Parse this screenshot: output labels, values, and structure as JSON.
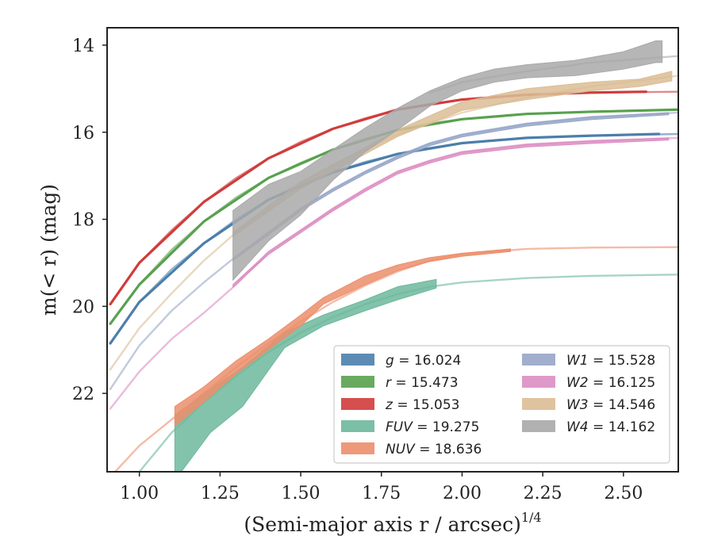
{
  "chart_data": {
    "type": "line",
    "xlabel": "(Semi-major axis r / arcsec)",
    "xlabel_superscript": "1/4",
    "ylabel": "m(< r) (mag)",
    "xlim": [
      0.9,
      2.67
    ],
    "ylim": [
      23.8,
      13.6
    ],
    "y_inverted": true,
    "xticks": [
      "1.00",
      "1.25",
      "1.50",
      "1.75",
      "2.00",
      "2.25",
      "2.50"
    ],
    "xtick_values": [
      1.0,
      1.25,
      1.5,
      1.75,
      2.0,
      2.25,
      2.5
    ],
    "yticks": [
      "14",
      "16",
      "18",
      "20",
      "22"
    ],
    "ytick_values": [
      14,
      16,
      18,
      20,
      22
    ],
    "legend_position": "lower-right",
    "legend": [
      {
        "band": "g",
        "value": "16.024",
        "color": "#4c7eab"
      },
      {
        "band": "r",
        "value": "15.473",
        "color": "#59a14f"
      },
      {
        "band": "z",
        "value": "15.053",
        "color": "#d03c3c"
      },
      {
        "band": "FUV",
        "value": "19.275",
        "color": "#6db89c"
      },
      {
        "band": "NUV",
        "value": "18.636",
        "color": "#ec8e6b"
      },
      {
        "band": "W1",
        "value": "15.528",
        "color": "#97a6c8"
      },
      {
        "band": "W2",
        "value": "16.125",
        "color": "#dc8ec3"
      },
      {
        "band": "W3",
        "value": "14.546",
        "color": "#dbbd95"
      },
      {
        "band": "W4",
        "value": "14.162",
        "color": "#a9a9a9"
      }
    ],
    "series": [
      {
        "band": "g",
        "color": "#4c7eab",
        "model": [
          [
            0.91,
            20.85
          ],
          [
            1.0,
            19.9
          ],
          [
            1.1,
            19.15
          ],
          [
            1.2,
            18.55
          ],
          [
            1.3,
            18.0
          ],
          [
            1.4,
            17.55
          ],
          [
            1.5,
            17.2
          ],
          [
            1.6,
            16.92
          ],
          [
            1.7,
            16.68
          ],
          [
            1.8,
            16.5
          ],
          [
            1.9,
            16.36
          ],
          [
            2.0,
            16.25
          ],
          [
            2.2,
            16.13
          ],
          [
            2.4,
            16.08
          ],
          [
            2.67,
            16.04
          ]
        ],
        "band_data": [
          [
            0.91,
            20.85,
            20.85
          ],
          [
            1.0,
            19.9,
            19.9
          ],
          [
            1.2,
            18.55,
            18.55
          ],
          [
            1.4,
            17.55,
            17.55
          ],
          [
            1.6,
            16.92,
            16.92
          ],
          [
            1.8,
            16.5,
            16.5
          ],
          [
            2.0,
            16.25,
            16.25
          ],
          [
            2.2,
            16.13,
            16.13
          ],
          [
            2.4,
            16.08,
            16.08
          ],
          [
            2.61,
            16.04,
            16.04
          ]
        ]
      },
      {
        "band": "r",
        "color": "#59a14f",
        "model": [
          [
            0.91,
            20.4
          ],
          [
            1.0,
            19.5
          ],
          [
            1.1,
            18.7
          ],
          [
            1.2,
            18.05
          ],
          [
            1.3,
            17.5
          ],
          [
            1.4,
            17.05
          ],
          [
            1.5,
            16.7
          ],
          [
            1.6,
            16.4
          ],
          [
            1.7,
            16.15
          ],
          [
            1.8,
            15.95
          ],
          [
            1.9,
            15.8
          ],
          [
            2.0,
            15.7
          ],
          [
            2.2,
            15.58
          ],
          [
            2.4,
            15.53
          ],
          [
            2.67,
            15.48
          ]
        ],
        "band_data": [
          [
            0.91,
            20.4,
            20.4
          ],
          [
            1.0,
            19.5,
            19.5
          ],
          [
            1.2,
            18.05,
            18.05
          ],
          [
            1.4,
            17.05,
            17.05
          ],
          [
            1.6,
            16.4,
            16.4
          ],
          [
            1.8,
            15.95,
            15.95
          ],
          [
            2.0,
            15.7,
            15.7
          ],
          [
            2.2,
            15.58,
            15.58
          ],
          [
            2.4,
            15.53,
            15.53
          ],
          [
            2.67,
            15.48,
            15.48
          ]
        ]
      },
      {
        "band": "z",
        "color": "#d03c3c",
        "model": [
          [
            0.91,
            19.95
          ],
          [
            1.0,
            19.0
          ],
          [
            1.1,
            18.25
          ],
          [
            1.2,
            17.6
          ],
          [
            1.3,
            17.05
          ],
          [
            1.4,
            16.6
          ],
          [
            1.5,
            16.22
          ],
          [
            1.6,
            15.92
          ],
          [
            1.7,
            15.68
          ],
          [
            1.8,
            15.48
          ],
          [
            1.9,
            15.35
          ],
          [
            2.0,
            15.25
          ],
          [
            2.2,
            15.14
          ],
          [
            2.4,
            15.09
          ],
          [
            2.67,
            15.07
          ]
        ],
        "band_data": [
          [
            0.91,
            19.95,
            19.95
          ],
          [
            1.0,
            19.0,
            19.0
          ],
          [
            1.2,
            17.6,
            17.6
          ],
          [
            1.4,
            16.6,
            16.6
          ],
          [
            1.6,
            15.92,
            15.92
          ],
          [
            1.8,
            15.48,
            15.48
          ],
          [
            2.0,
            15.25,
            15.25
          ],
          [
            2.2,
            15.14,
            15.14
          ],
          [
            2.4,
            15.09,
            15.09
          ],
          [
            2.57,
            15.07,
            15.07
          ]
        ]
      },
      {
        "band": "FUV",
        "color": "#6db89c",
        "model": [
          [
            1.0,
            23.8
          ],
          [
            1.1,
            22.9
          ],
          [
            1.2,
            22.2
          ],
          [
            1.3,
            21.6
          ],
          [
            1.4,
            21.05
          ],
          [
            1.5,
            20.6
          ],
          [
            1.6,
            20.25
          ],
          [
            1.7,
            19.95
          ],
          [
            1.8,
            19.72
          ],
          [
            1.9,
            19.55
          ],
          [
            2.0,
            19.45
          ],
          [
            2.2,
            19.35
          ],
          [
            2.4,
            19.3
          ],
          [
            2.67,
            19.27
          ]
        ],
        "band_data": [
          [
            1.11,
            22.5,
            24.0
          ],
          [
            1.22,
            21.9,
            22.9
          ],
          [
            1.32,
            21.4,
            22.3
          ],
          [
            1.45,
            20.6,
            20.95
          ],
          [
            1.57,
            20.2,
            20.45
          ],
          [
            1.7,
            19.85,
            20.1
          ],
          [
            1.8,
            19.55,
            19.85
          ],
          [
            1.92,
            19.38,
            19.58
          ]
        ]
      },
      {
        "band": "NUV",
        "color": "#ec8e6b",
        "model": [
          [
            0.9,
            24.0
          ],
          [
            1.0,
            23.2
          ],
          [
            1.1,
            22.6
          ],
          [
            1.2,
            22.0
          ],
          [
            1.3,
            21.4
          ],
          [
            1.4,
            20.85
          ],
          [
            1.5,
            20.35
          ],
          [
            1.6,
            19.9
          ],
          [
            1.7,
            19.52
          ],
          [
            1.8,
            19.2
          ],
          [
            1.9,
            18.95
          ],
          [
            2.0,
            18.8
          ],
          [
            2.2,
            18.68
          ],
          [
            2.4,
            18.65
          ],
          [
            2.67,
            18.64
          ]
        ],
        "band_data": [
          [
            1.11,
            22.3,
            22.75
          ],
          [
            1.2,
            21.85,
            22.2
          ],
          [
            1.3,
            21.25,
            21.55
          ],
          [
            1.4,
            20.75,
            21.0
          ],
          [
            1.5,
            20.2,
            20.45
          ],
          [
            1.57,
            19.8,
            19.95
          ],
          [
            1.7,
            19.3,
            19.5
          ],
          [
            1.8,
            19.05,
            19.18
          ],
          [
            1.9,
            18.88,
            18.97
          ],
          [
            2.0,
            18.78,
            18.85
          ],
          [
            2.15,
            18.68,
            18.74
          ]
        ]
      },
      {
        "band": "W1",
        "color": "#97a6c8",
        "model": [
          [
            0.91,
            21.9
          ],
          [
            1.0,
            20.9
          ],
          [
            1.1,
            20.1
          ],
          [
            1.2,
            19.45
          ],
          [
            1.3,
            18.85
          ],
          [
            1.4,
            18.3
          ],
          [
            1.5,
            17.75
          ],
          [
            1.6,
            17.3
          ],
          [
            1.7,
            16.9
          ],
          [
            1.8,
            16.55
          ],
          [
            1.9,
            16.25
          ],
          [
            2.0,
            16.05
          ],
          [
            2.2,
            15.8
          ],
          [
            2.4,
            15.65
          ],
          [
            2.67,
            15.55
          ]
        ],
        "band_data": [
          [
            1.29,
            18.9,
            18.95
          ],
          [
            1.4,
            18.3,
            18.36
          ],
          [
            1.5,
            17.75,
            17.81
          ],
          [
            1.6,
            17.3,
            17.36
          ],
          [
            1.7,
            16.9,
            16.96
          ],
          [
            1.8,
            16.55,
            16.61
          ],
          [
            1.9,
            16.25,
            16.31
          ],
          [
            2.0,
            16.05,
            16.11
          ],
          [
            2.2,
            15.8,
            15.86
          ],
          [
            2.4,
            15.65,
            15.71
          ],
          [
            2.64,
            15.55,
            15.6
          ]
        ]
      },
      {
        "band": "W2",
        "color": "#dc8ec3",
        "model": [
          [
            0.91,
            22.35
          ],
          [
            1.0,
            21.5
          ],
          [
            1.1,
            20.75
          ],
          [
            1.2,
            20.15
          ],
          [
            1.3,
            19.5
          ],
          [
            1.4,
            18.75
          ],
          [
            1.5,
            18.25
          ],
          [
            1.6,
            17.75
          ],
          [
            1.7,
            17.3
          ],
          [
            1.8,
            16.9
          ],
          [
            1.9,
            16.65
          ],
          [
            2.0,
            16.45
          ],
          [
            2.2,
            16.28
          ],
          [
            2.4,
            16.2
          ],
          [
            2.67,
            16.13
          ]
        ],
        "band_data": [
          [
            1.29,
            19.5,
            19.56
          ],
          [
            1.4,
            18.75,
            18.81
          ],
          [
            1.5,
            18.25,
            18.31
          ],
          [
            1.6,
            17.75,
            17.81
          ],
          [
            1.7,
            17.3,
            17.36
          ],
          [
            1.8,
            16.9,
            16.96
          ],
          [
            1.9,
            16.65,
            16.71
          ],
          [
            2.0,
            16.45,
            16.51
          ],
          [
            2.2,
            16.28,
            16.34
          ],
          [
            2.4,
            16.2,
            16.26
          ],
          [
            2.64,
            16.13,
            16.18
          ]
        ]
      },
      {
        "band": "W3",
        "color": "#dbbd95",
        "model": [
          [
            0.91,
            21.45
          ],
          [
            1.0,
            20.5
          ],
          [
            1.1,
            19.7
          ],
          [
            1.2,
            18.95
          ],
          [
            1.3,
            18.3
          ],
          [
            1.4,
            17.7
          ],
          [
            1.5,
            17.15
          ],
          [
            1.6,
            16.75
          ],
          [
            1.7,
            16.4
          ],
          [
            1.8,
            16.05
          ],
          [
            1.9,
            15.8
          ],
          [
            2.0,
            15.55
          ],
          [
            2.2,
            15.2
          ],
          [
            2.4,
            14.95
          ],
          [
            2.67,
            14.7
          ]
        ],
        "band_data": [
          [
            1.29,
            18.3,
            18.4
          ],
          [
            1.4,
            17.7,
            17.82
          ],
          [
            1.5,
            17.15,
            17.3
          ],
          [
            1.6,
            16.75,
            16.9
          ],
          [
            1.7,
            16.35,
            16.5
          ],
          [
            1.8,
            15.95,
            16.1
          ],
          [
            1.9,
            15.62,
            15.8
          ],
          [
            2.0,
            15.3,
            15.5
          ],
          [
            2.2,
            15.0,
            15.25
          ],
          [
            2.4,
            14.85,
            15.05
          ],
          [
            2.55,
            14.78,
            14.95
          ],
          [
            2.65,
            14.6,
            14.82
          ]
        ]
      },
      {
        "band": "W4",
        "color": "#a9a9a9",
        "model": [
          [
            1.9,
            15.1
          ],
          [
            2.0,
            14.85
          ],
          [
            2.2,
            14.6
          ],
          [
            2.4,
            14.4
          ],
          [
            2.67,
            14.25
          ]
        ],
        "band_data": [
          [
            1.29,
            17.8,
            19.4
          ],
          [
            1.4,
            17.2,
            18.5
          ],
          [
            1.5,
            16.9,
            17.9
          ],
          [
            1.6,
            16.4,
            17.1
          ],
          [
            1.7,
            15.9,
            16.45
          ],
          [
            1.8,
            15.45,
            15.95
          ],
          [
            1.9,
            15.05,
            15.4
          ],
          [
            2.0,
            14.75,
            15.05
          ],
          [
            2.1,
            14.55,
            14.85
          ],
          [
            2.2,
            14.45,
            14.75
          ],
          [
            2.35,
            14.35,
            14.7
          ],
          [
            2.5,
            14.15,
            14.55
          ],
          [
            2.6,
            13.9,
            14.4
          ],
          [
            2.62,
            13.9,
            14.4
          ]
        ]
      }
    ]
  }
}
